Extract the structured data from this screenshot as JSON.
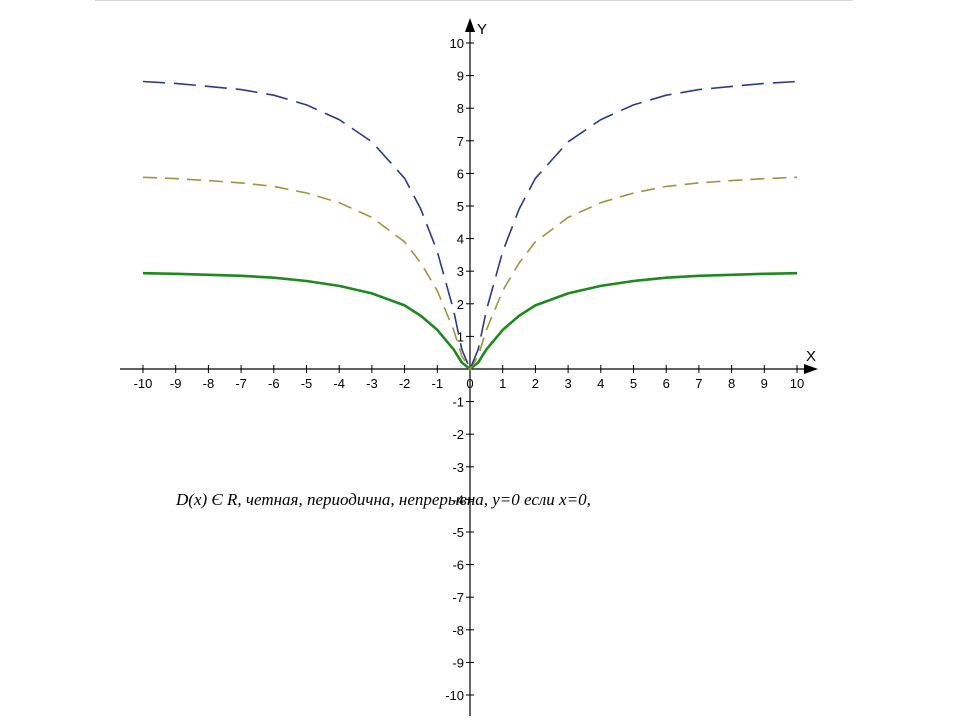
{
  "caption": "D(x) Є R, четная, периодична, непрерывна, y=0 если x=0,",
  "chart_data": {
    "type": "line",
    "xlabel": "X",
    "ylabel": "Y",
    "xlim": [
      -10,
      10
    ],
    "ylim": [
      -10,
      10
    ],
    "x_ticks": [
      -10,
      -9,
      -8,
      -7,
      -6,
      -5,
      -4,
      -3,
      -2,
      -1,
      0,
      1,
      2,
      3,
      4,
      5,
      6,
      7,
      8,
      9,
      10
    ],
    "y_ticks": [
      10,
      9,
      8,
      7,
      6,
      5,
      4,
      3,
      2,
      1,
      -1,
      -2,
      -3,
      -4,
      -5,
      -6,
      -7,
      -8,
      -9,
      -10
    ],
    "origin_label": "0",
    "grid": false,
    "series": [
      {
        "color": "#1e8a1e",
        "dash": "solid",
        "x": [
          -10,
          -9,
          -8,
          -7,
          -6,
          -5,
          -4,
          -3,
          -2,
          -1.5,
          -1,
          -0.5,
          -0.25,
          0,
          0.25,
          0.5,
          1,
          1.5,
          2,
          3,
          4,
          5,
          6,
          7,
          8,
          9,
          10
        ],
        "y": [
          2.94,
          2.92,
          2.89,
          2.86,
          2.8,
          2.7,
          2.55,
          2.32,
          1.95,
          1.63,
          1.2,
          0.6,
          0.2,
          0,
          0.2,
          0.6,
          1.2,
          1.63,
          1.95,
          2.32,
          2.55,
          2.7,
          2.8,
          2.86,
          2.89,
          2.92,
          2.94
        ]
      },
      {
        "color": "#9a9640",
        "dash": "dashed",
        "x": [
          -10,
          -9,
          -8,
          -7,
          -6,
          -5,
          -4,
          -3,
          -2,
          -1.5,
          -1,
          -0.5,
          -0.25,
          0,
          0.25,
          0.5,
          1,
          1.5,
          2,
          3,
          4,
          5,
          6,
          7,
          8,
          9,
          10
        ],
        "y": [
          5.88,
          5.84,
          5.78,
          5.71,
          5.6,
          5.4,
          5.1,
          4.65,
          3.9,
          3.25,
          2.4,
          1.2,
          0.4,
          0,
          0.4,
          1.2,
          2.4,
          3.25,
          3.9,
          4.65,
          5.1,
          5.4,
          5.6,
          5.71,
          5.78,
          5.84,
          5.88
        ]
      },
      {
        "color": "#2a3a8c",
        "dash": "dashed",
        "x": [
          -10,
          -9,
          -8,
          -7,
          -6,
          -5,
          -4,
          -3,
          -2,
          -1.5,
          -1,
          -0.5,
          -0.25,
          0,
          0.25,
          0.5,
          1,
          1.5,
          2,
          3,
          4,
          5,
          6,
          7,
          8,
          9,
          10
        ],
        "y": [
          8.82,
          8.76,
          8.67,
          8.57,
          8.4,
          8.1,
          7.65,
          6.97,
          5.85,
          4.9,
          3.6,
          1.8,
          0.6,
          0,
          0.6,
          1.8,
          3.6,
          4.9,
          5.85,
          6.97,
          7.65,
          8.1,
          8.4,
          8.57,
          8.67,
          8.76,
          8.82
        ]
      }
    ]
  }
}
